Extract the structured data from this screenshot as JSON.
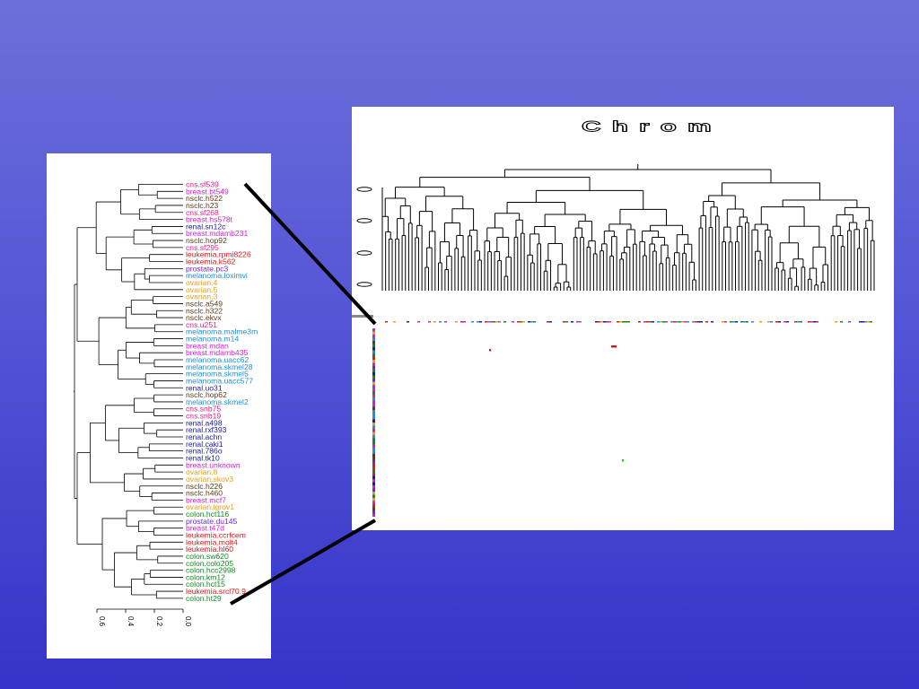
{
  "colors": {
    "background_top": "#6d6fd9",
    "background_bottom": "#3434c8",
    "breast": "#d21fd2",
    "nsclc": "#5a3a17",
    "cns": "#e0218a",
    "renal": "#1a1a9e",
    "leukemia": "#e01818",
    "prostate": "#6b2ad0",
    "melanoma": "#1e8fd8",
    "ovarian": "#e8a010",
    "colon": "#0f8a1f"
  },
  "right_panel": {
    "title": "Chrom"
  },
  "left_dendrogram": {
    "axis_ticks": [
      "0.6",
      "0.4",
      "0.2",
      "0.0"
    ],
    "leaves": [
      {
        "label": "cns.sf539",
        "group": "cns"
      },
      {
        "label": "breast.bt549",
        "group": "breast"
      },
      {
        "label": "nsclc.h522",
        "group": "nsclc"
      },
      {
        "label": "nsclc.h23",
        "group": "nsclc"
      },
      {
        "label": "cns.sf268",
        "group": "cns"
      },
      {
        "label": "breast.hs578t",
        "group": "breast"
      },
      {
        "label": "renal.sn12c",
        "group": "renal"
      },
      {
        "label": "breast.mdamb231",
        "group": "breast"
      },
      {
        "label": "nsclc.hop92",
        "group": "nsclc"
      },
      {
        "label": "cns.sf295",
        "group": "cns"
      },
      {
        "label": "leukemia.rpmi8226",
        "group": "leukemia"
      },
      {
        "label": "leukemia.k562",
        "group": "leukemia"
      },
      {
        "label": "prostate.pc3",
        "group": "prostate"
      },
      {
        "label": "melanoma.loximvi",
        "group": "melanoma"
      },
      {
        "label": "ovarian.4",
        "group": "ovarian"
      },
      {
        "label": "ovarian.5",
        "group": "ovarian"
      },
      {
        "label": "ovarian.3",
        "group": "ovarian"
      },
      {
        "label": "nsclc.a549",
        "group": "nsclc"
      },
      {
        "label": "nsclc.h322",
        "group": "nsclc"
      },
      {
        "label": "nsclc.ekvx",
        "group": "nsclc"
      },
      {
        "label": "cns.u251",
        "group": "cns"
      },
      {
        "label": "melanoma.malme3m",
        "group": "melanoma"
      },
      {
        "label": "melanoma.m14",
        "group": "melanoma"
      },
      {
        "label": "breast.mdan",
        "group": "breast"
      },
      {
        "label": "breast.mdamb435",
        "group": "breast"
      },
      {
        "label": "melanoma.uacc62",
        "group": "melanoma"
      },
      {
        "label": "melanoma.skmel28",
        "group": "melanoma"
      },
      {
        "label": "melanoma.skmel5",
        "group": "melanoma"
      },
      {
        "label": "melanoma.uacc577",
        "group": "melanoma"
      },
      {
        "label": "renal.uo31",
        "group": "renal"
      },
      {
        "label": "nsclc.hop62",
        "group": "nsclc"
      },
      {
        "label": "melanoma.skmel2",
        "group": "melanoma"
      },
      {
        "label": "cns.snb75",
        "group": "cns"
      },
      {
        "label": "cns.snb19",
        "group": "cns"
      },
      {
        "label": "renal.a498",
        "group": "renal"
      },
      {
        "label": "renal.rxf393",
        "group": "renal"
      },
      {
        "label": "renal.achn",
        "group": "renal"
      },
      {
        "label": "renal.caki1",
        "group": "renal"
      },
      {
        "label": "renal.786o",
        "group": "renal"
      },
      {
        "label": "renal.tk10",
        "group": "renal"
      },
      {
        "label": "breast.unknown",
        "group": "breast"
      },
      {
        "label": "ovarian.8",
        "group": "ovarian"
      },
      {
        "label": "ovarian.skov3",
        "group": "ovarian"
      },
      {
        "label": "nsclc.h226",
        "group": "nsclc"
      },
      {
        "label": "nsclc.h460",
        "group": "nsclc"
      },
      {
        "label": "breast.mcf7",
        "group": "breast"
      },
      {
        "label": "ovarian.igrov1",
        "group": "ovarian"
      },
      {
        "label": "colon.hct116",
        "group": "colon"
      },
      {
        "label": "prostate.du145",
        "group": "prostate"
      },
      {
        "label": "breast.t47d",
        "group": "breast"
      },
      {
        "label": "leukemia.ccrfcem",
        "group": "leukemia"
      },
      {
        "label": "leukemia.molt4",
        "group": "leukemia"
      },
      {
        "label": "leukemia.hl60",
        "group": "leukemia"
      },
      {
        "label": "colon.sw620",
        "group": "colon"
      },
      {
        "label": "colon.colo205",
        "group": "colon"
      },
      {
        "label": "colon.hcc2998",
        "group": "colon"
      },
      {
        "label": "colon.km12",
        "group": "colon"
      },
      {
        "label": "colon.hct15",
        "group": "colon"
      },
      {
        "label": "leukemia.srcl70.9",
        "group": "leukemia"
      },
      {
        "label": "colon.ht29",
        "group": "colon"
      }
    ]
  }
}
